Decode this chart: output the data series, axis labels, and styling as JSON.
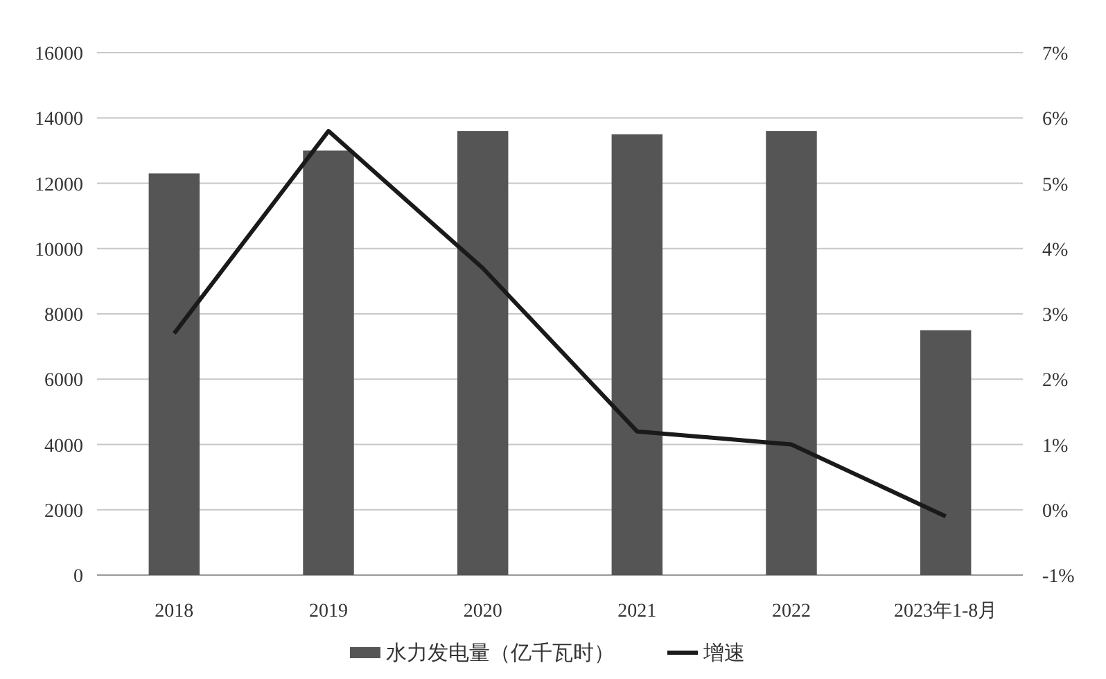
{
  "chart_data": {
    "type": "bar",
    "categories": [
      "2018",
      "2019",
      "2020",
      "2021",
      "2022",
      "2023年1-8月"
    ],
    "series": [
      {
        "name": "水力发电量（亿千瓦时）",
        "color": "#555555",
        "values": [
          12300,
          13000,
          13600,
          13500,
          13600,
          7500
        ]
      },
      {
        "name": "增速",
        "type": "line",
        "axis": "y2",
        "color": "#1a1a1a",
        "values": [
          2.7,
          5.8,
          3.7,
          1.2,
          1.0,
          -0.1
        ]
      }
    ],
    "ylim": [
      0,
      16000
    ],
    "yticks": [
      0,
      2000,
      4000,
      6000,
      8000,
      10000,
      12000,
      14000,
      16000
    ],
    "y2lim": [
      -1,
      7
    ],
    "y2ticks": [
      {
        "value": -1,
        "label": "-1%"
      },
      {
        "value": 0,
        "label": "0%"
      },
      {
        "value": 1,
        "label": "1%"
      },
      {
        "value": 2,
        "label": "2%"
      },
      {
        "value": 3,
        "label": "3%"
      },
      {
        "value": 4,
        "label": "4%"
      },
      {
        "value": 5,
        "label": "5%"
      },
      {
        "value": 6,
        "label": "6%"
      },
      {
        "value": 7,
        "label": "7%"
      }
    ],
    "grid": "y",
    "legend": "bottom",
    "marker": "none",
    "line_style": "solid"
  }
}
